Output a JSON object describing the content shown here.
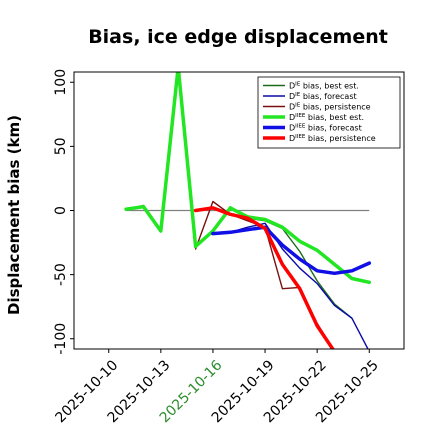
{
  "chart_data": {
    "type": "line",
    "title": "Bias, ice edge displacement",
    "xlabel": "",
    "ylabel": "Displacement bias (km)",
    "xlim": [
      "2025-10-08",
      "2025-10-27"
    ],
    "ylim": [
      -108,
      108
    ],
    "yticks": [
      100,
      50,
      0,
      -50,
      -100
    ],
    "yticklabels": [
      "100",
      "50",
      "0",
      "-50",
      "-100"
    ],
    "xticks": [
      "2025-10-10",
      "2025-10-13",
      "2025-10-16",
      "2025-10-19",
      "2025-10-22",
      "2025-10-25"
    ],
    "xticklabels": [
      "2025-10-10",
      "2025-10-13",
      "2025-10-16",
      "2025-10-19",
      "2025-10-22",
      "2025-10-25"
    ],
    "xtick_colors": [
      "#000000",
      "#000000",
      "#2e8b2e",
      "#000000",
      "#000000",
      "#000000"
    ],
    "grid": false,
    "legend_position": "upper right",
    "zero_line_color": "#808080",
    "series": [
      {
        "name": "DIE bias, best est.",
        "label_main": "D",
        "label_sup": "IE",
        "label_rest": " bias, best est.",
        "color": "#1a6b1a",
        "width": 1.4,
        "x": [
          "2025-10-11",
          "2025-10-12",
          "2025-10-13",
          "2025-10-14",
          "2025-10-15",
          "2025-10-16",
          "2025-10-17",
          "2025-10-18",
          "2025-10-19",
          "2025-10-20",
          "2025-10-21",
          "2025-10-22",
          "2025-10-23",
          "2025-10-24"
        ],
        "y": [
          1,
          4,
          -16,
          112,
          -27,
          -17,
          3,
          -6,
          -8,
          -14,
          -32,
          -55,
          -73,
          -84
        ]
      },
      {
        "name": "DIE bias, forecast",
        "label_main": "D",
        "label_sup": "IE",
        "label_rest": " bias, forecast",
        "color": "#0a0aa8",
        "width": 1.4,
        "x": [
          "2025-10-16",
          "2025-10-17",
          "2025-10-18",
          "2025-10-19",
          "2025-10-20",
          "2025-10-21",
          "2025-10-22",
          "2025-10-23",
          "2025-10-24",
          "2025-10-25"
        ],
        "y": [
          -18,
          -17,
          -13,
          -10,
          -30,
          -45,
          -57,
          -74,
          -84,
          -110
        ]
      },
      {
        "name": "DIE bias, persistence",
        "label_main": "D",
        "label_sup": "IE",
        "label_rest": " bias, persistence",
        "color": "#7a1010",
        "width": 1.4,
        "x": [
          "2025-10-15",
          "2025-10-16",
          "2025-10-17",
          "2025-10-18",
          "2025-10-19",
          "2025-10-20",
          "2025-10-21",
          "2025-10-22",
          "2025-10-23"
        ],
        "y": [
          -30,
          7,
          -3,
          -8,
          -13,
          -61,
          -60,
          -88,
          -110
        ]
      },
      {
        "name": "DIIEE bias, best est.",
        "label_main": "D",
        "label_sup": "IIEE",
        "label_rest": " bias, best est.",
        "color": "#22e622",
        "width": 3.5,
        "x": [
          "2025-10-11",
          "2025-10-12",
          "2025-10-13",
          "2025-10-14",
          "2025-10-15",
          "2025-10-16",
          "2025-10-17",
          "2025-10-18",
          "2025-10-19",
          "2025-10-20",
          "2025-10-21",
          "2025-10-22",
          "2025-10-23",
          "2025-10-24",
          "2025-10-25"
        ],
        "y": [
          1,
          3,
          -16,
          112,
          -28,
          -16,
          2,
          -5,
          -7,
          -13,
          -24,
          -31,
          -42,
          -53,
          -56
        ]
      },
      {
        "name": "DIIEE bias, forecast",
        "label_main": "D",
        "label_sup": "IIEE",
        "label_rest": " bias, forecast",
        "color": "#0f0fe6",
        "width": 3.5,
        "x": [
          "2025-10-16",
          "2025-10-17",
          "2025-10-18",
          "2025-10-19",
          "2025-10-20",
          "2025-10-21",
          "2025-10-22",
          "2025-10-23",
          "2025-10-24",
          "2025-10-25"
        ],
        "y": [
          -18,
          -17,
          -15,
          -13,
          -27,
          -38,
          -47,
          -49,
          -47,
          -41
        ]
      },
      {
        "name": "DIIEE bias, persistence",
        "label_main": "D",
        "label_sup": "IIEE",
        "label_rest": " bias, persistence",
        "color": "#ff0000",
        "width": 3.5,
        "x": [
          "2025-10-15",
          "2025-10-16",
          "2025-10-17",
          "2025-10-18",
          "2025-10-19",
          "2025-10-20",
          "2025-10-21",
          "2025-10-22",
          "2025-10-23"
        ],
        "y": [
          0,
          2,
          -3,
          -6,
          -14,
          -42,
          -61,
          -90,
          -110
        ]
      }
    ]
  }
}
